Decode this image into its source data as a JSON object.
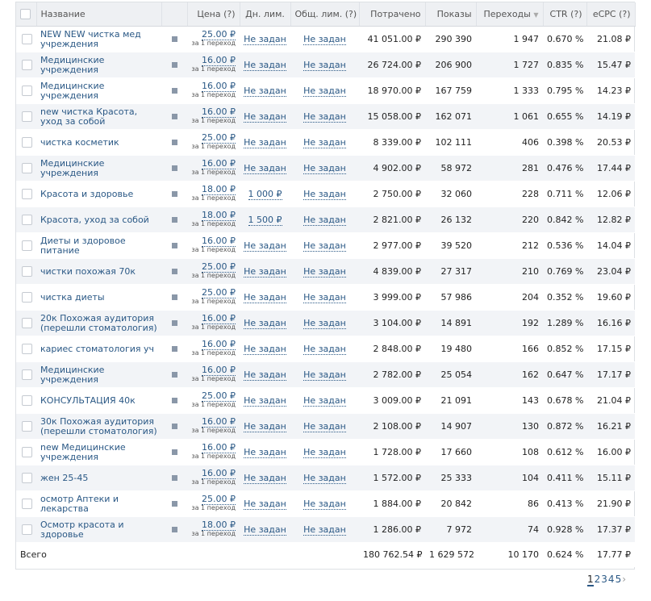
{
  "header": {
    "name": "Название",
    "price": "Цена (?)",
    "daily": "Дн. лим.",
    "total": "Общ. лим. (?)",
    "spent": "Потрачено",
    "shows": "Показы",
    "clicks": "Переходы",
    "ctr": "CTR (?)",
    "ecpc": "eCPC (?)"
  },
  "rows": [
    [
      "NEW NEW чистка мед учреждения",
      "25.00 ₽",
      "за 1 переход",
      "Не задан",
      "Не задан",
      "41 051.00 ₽",
      "290 390",
      "1 947",
      "0.670 %",
      "21.08 ₽"
    ],
    [
      "Медицинские учреждения",
      "16.00 ₽",
      "за 1 переход",
      "Не задан",
      "Не задан",
      "26 724.00 ₽",
      "206 900",
      "1 727",
      "0.835 %",
      "15.47 ₽"
    ],
    [
      "Медицинские учреждения",
      "16.00 ₽",
      "за 1 переход",
      "Не задан",
      "Не задан",
      "18 970.00 ₽",
      "167 759",
      "1 333",
      "0.795 %",
      "14.23 ₽"
    ],
    [
      "new чистка Красота, уход за собой",
      "16.00 ₽",
      "за 1 переход",
      "Не задан",
      "Не задан",
      "15 058.00 ₽",
      "162 071",
      "1 061",
      "0.655 %",
      "14.19 ₽"
    ],
    [
      "чистка косметик",
      "25.00 ₽",
      "за 1 переход",
      "Не задан",
      "Не задан",
      "8 339.00 ₽",
      "102 111",
      "406",
      "0.398 %",
      "20.53 ₽"
    ],
    [
      "Медицинские учреждения",
      "16.00 ₽",
      "за 1 переход",
      "Не задан",
      "Не задан",
      "4 902.00 ₽",
      "58 972",
      "281",
      "0.476 %",
      "17.44 ₽"
    ],
    [
      "Красота и здоровье",
      "18.00 ₽",
      "за 1 переход",
      "1 000 ₽",
      "Не задан",
      "2 750.00 ₽",
      "32 060",
      "228",
      "0.711 %",
      "12.06 ₽"
    ],
    [
      "Красота, уход за собой",
      "18.00 ₽",
      "за 1 переход",
      "1 500 ₽",
      "Не задан",
      "2 821.00 ₽",
      "26 132",
      "220",
      "0.842 %",
      "12.82 ₽"
    ],
    [
      "Диеты и здоровое питание",
      "16.00 ₽",
      "за 1 переход",
      "Не задан",
      "Не задан",
      "2 977.00 ₽",
      "39 520",
      "212",
      "0.536 %",
      "14.04 ₽"
    ],
    [
      "чистки похожая 70к",
      "25.00 ₽",
      "за 1 переход",
      "Не задан",
      "Не задан",
      "4 839.00 ₽",
      "27 317",
      "210",
      "0.769 %",
      "23.04 ₽"
    ],
    [
      "чистка диеты",
      "25.00 ₽",
      "за 1 переход",
      "Не задан",
      "Не задан",
      "3 999.00 ₽",
      "57 986",
      "204",
      "0.352 %",
      "19.60 ₽"
    ],
    [
      "20к Похожая аудитория (перешли стоматология)",
      "16.00 ₽",
      "за 1 переход",
      "Не задан",
      "Не задан",
      "3 104.00 ₽",
      "14 891",
      "192",
      "1.289 %",
      "16.16 ₽"
    ],
    [
      "кариес стоматология уч",
      "16.00 ₽",
      "за 1 переход",
      "Не задан",
      "Не задан",
      "2 848.00 ₽",
      "19 480",
      "166",
      "0.852 %",
      "17.15 ₽"
    ],
    [
      "Медицинские учреждения",
      "16.00 ₽",
      "за 1 переход",
      "Не задан",
      "Не задан",
      "2 782.00 ₽",
      "25 054",
      "162",
      "0.647 %",
      "17.17 ₽"
    ],
    [
      "КОНСУЛЬТАЦИЯ 40к",
      "25.00 ₽",
      "за 1 переход",
      "Не задан",
      "Не задан",
      "3 009.00 ₽",
      "21 091",
      "143",
      "0.678 %",
      "21.04 ₽"
    ],
    [
      "30к Похожая аудитория (перешли стоматология)",
      "16.00 ₽",
      "за 1 переход",
      "Не задан",
      "Не задан",
      "2 108.00 ₽",
      "14 907",
      "130",
      "0.872 %",
      "16.21 ₽"
    ],
    [
      "new Медицинские учреждения",
      "16.00 ₽",
      "за 1 переход",
      "Не задан",
      "Не задан",
      "1 728.00 ₽",
      "17 660",
      "108",
      "0.612 %",
      "16.00 ₽"
    ],
    [
      "жен 25-45",
      "16.00 ₽",
      "за 1 переход",
      "Не задан",
      "Не задан",
      "1 572.00 ₽",
      "25 333",
      "104",
      "0.411 %",
      "15.11 ₽"
    ],
    [
      "осмотр Аптеки и лекарства",
      "25.00 ₽",
      "за 1 переход",
      "Не задан",
      "Не задан",
      "1 884.00 ₽",
      "20 842",
      "86",
      "0.413 %",
      "21.90 ₽"
    ],
    [
      "Осмотр красота и здоровье",
      "18.00 ₽",
      "за 1 переход",
      "Не задан",
      "Не задан",
      "1 286.00 ₽",
      "7 972",
      "74",
      "0.928 %",
      "17.37 ₽"
    ]
  ],
  "total": {
    "label": "Всего",
    "spent": "180 762.54 ₽",
    "shows": "1 629 572",
    "clicks": "10 170",
    "ctr": "0.624 %",
    "ecpc": "17.77 ₽"
  },
  "pagination": {
    "pages": [
      "1",
      "2",
      "3",
      "4",
      "5"
    ],
    "next": "›"
  }
}
